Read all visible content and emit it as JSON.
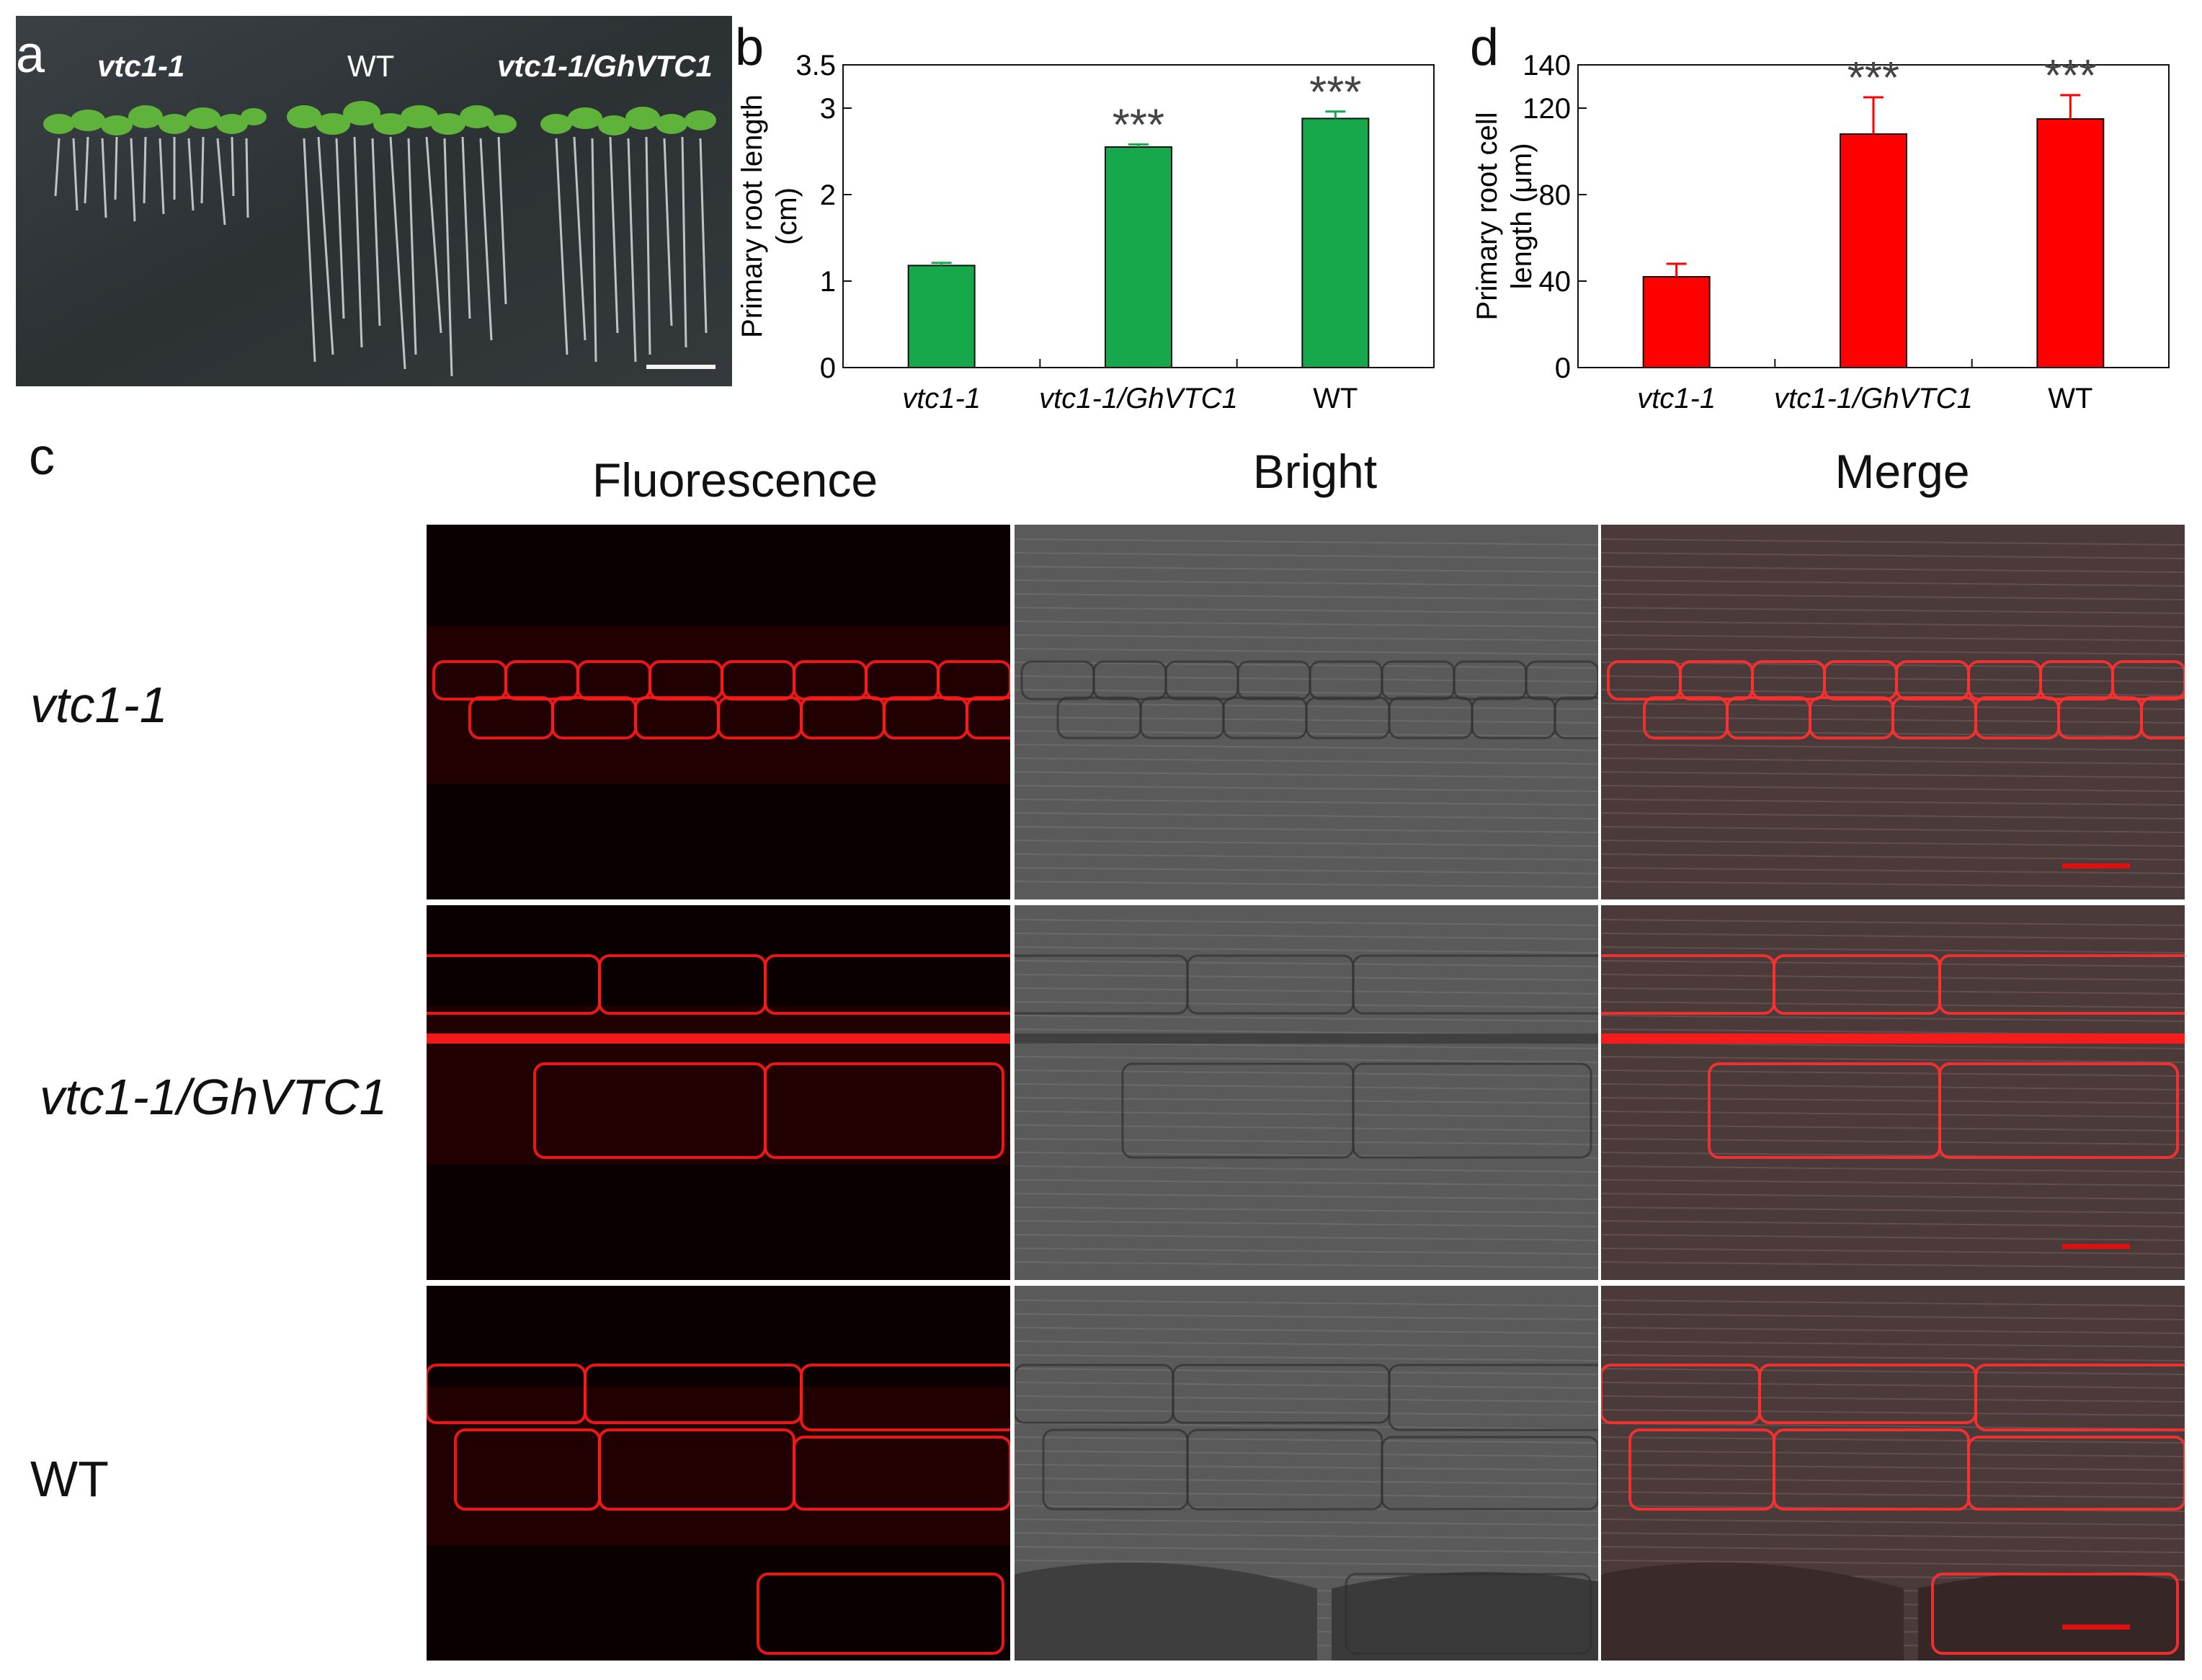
{
  "panel_labels": {
    "a": "a",
    "b": "b",
    "c": "c",
    "d": "d"
  },
  "panel_a": {
    "genotype_labels": [
      "vtc1-1",
      "WT",
      "vtc1-1/GhVTC1"
    ]
  },
  "chart_data": [
    {
      "type": "bar",
      "panel": "b",
      "categories": [
        "vtc1-1",
        "vtc1-1/GhVTC1",
        "WT"
      ],
      "values": [
        1.18,
        2.55,
        2.88
      ],
      "errors": [
        0.03,
        0.03,
        0.08
      ],
      "significance": [
        "",
        "***",
        "***"
      ],
      "color": "#17a84b",
      "ylabel_line1": "Primary root length",
      "ylabel_line2": "(cm)",
      "ylim": [
        0,
        3.5
      ],
      "yticks": [
        "0",
        "1",
        "2",
        "3",
        "3.5"
      ],
      "grid": false
    },
    {
      "type": "bar",
      "panel": "d",
      "categories": [
        "vtc1-1",
        "vtc1-1/GhVTC1",
        "WT"
      ],
      "values": [
        42,
        108,
        115
      ],
      "errors": [
        6,
        17,
        11
      ],
      "significance": [
        "",
        "***",
        "***"
      ],
      "color": "#ff0000",
      "ylabel_line1": "Primary root cell",
      "ylabel_line2": "length (μm)",
      "ylim": [
        0,
        140
      ],
      "yticks": [
        "0",
        "40",
        "80",
        "120",
        "140"
      ],
      "grid": false
    }
  ],
  "panel_c": {
    "column_headers": [
      "Fluorescence",
      "Bright",
      "Merge"
    ],
    "row_labels": [
      "vtc1-1",
      "vtc1-1/GhVTC1",
      "WT"
    ]
  },
  "colors": {
    "bar_b": "#17a84b",
    "bar_d": "#ff0000",
    "fluorescence": "#ff1a1a",
    "plate_background": "#2f3437",
    "scale_bar_micro": "#e01010"
  }
}
